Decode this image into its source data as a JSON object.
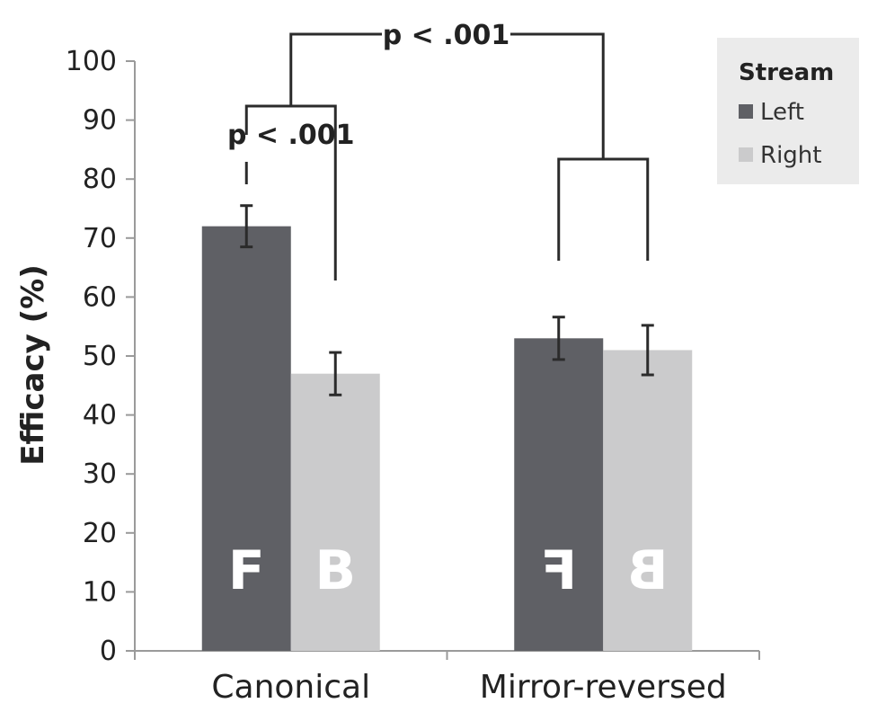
{
  "chart_data": {
    "type": "bar",
    "ylabel": "Efficacy (%)",
    "ylim": [
      0,
      100
    ],
    "yticks": [
      0,
      10,
      20,
      30,
      40,
      50,
      60,
      70,
      80,
      90,
      100
    ],
    "categories": [
      "Canonical",
      "Mirror-reversed"
    ],
    "series": [
      {
        "name": "Left",
        "color": "#5f6065",
        "values": [
          72,
          53
        ],
        "errors": [
          3.5,
          3.6
        ]
      },
      {
        "name": "Right",
        "color": "#cbcbcc",
        "values": [
          47,
          51
        ],
        "errors": [
          3.6,
          4.2
        ]
      }
    ],
    "bar_glyphs": [
      {
        "category": "Canonical",
        "series": "Left",
        "text": "F",
        "mirrored": false
      },
      {
        "category": "Canonical",
        "series": "Right",
        "text": "B",
        "mirrored": false
      },
      {
        "category": "Mirror-reversed",
        "series": "Left",
        "text": "F",
        "mirrored": true
      },
      {
        "category": "Mirror-reversed",
        "series": "Right",
        "text": "B",
        "mirrored": true
      }
    ],
    "legend": {
      "title": "Stream",
      "placement": "top-right",
      "entries": [
        "Left",
        "Right"
      ]
    },
    "annotations": [
      {
        "type": "significance",
        "label": "p < .001",
        "compares": "Canonical Left vs Canonical Right"
      },
      {
        "type": "significance",
        "label": "p < .001",
        "compares": "Canonical difference vs Mirror-reversed difference"
      }
    ]
  }
}
